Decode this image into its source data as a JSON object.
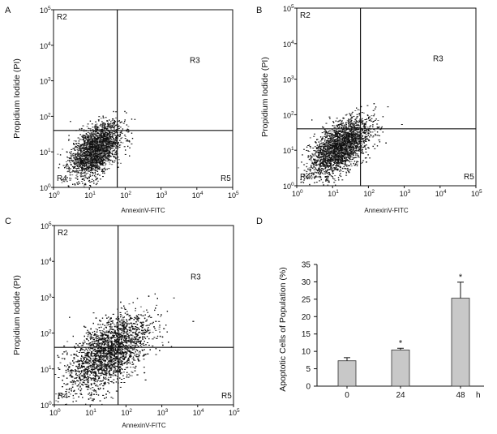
{
  "figure": {
    "panels": [
      "A",
      "B",
      "C",
      "D"
    ]
  },
  "flow_axes": {
    "x_label": "AnnexinV-FITC",
    "y_label": "Propidium Iodide (PI)",
    "base": "10",
    "exponents": [
      "0",
      "1",
      "2",
      "3",
      "4",
      "5"
    ],
    "regions": [
      "R2",
      "R3",
      "R4",
      "R5"
    ]
  },
  "chart_data": [
    {
      "panel": "A",
      "type": "scatter",
      "title": "",
      "xlabel": "AnnexinV-FITC",
      "ylabel": "Propidium Iodide (PI)",
      "xscale": "log",
      "yscale": "log",
      "xlim": [
        1,
        100000
      ],
      "ylim": [
        1,
        100000
      ],
      "gate_x": 60,
      "gate_y": 40,
      "regions": [
        "R2",
        "R3",
        "R4",
        "R5"
      ],
      "population": {
        "center_log": [
          1.15,
          1.05
        ],
        "spread_log": [
          0.35,
          0.45
        ],
        "events": 2200
      }
    },
    {
      "panel": "B",
      "type": "scatter",
      "title": "",
      "xlabel": "AnnexinV-FITC",
      "ylabel": "Propidium Iodide (PI)",
      "xscale": "log",
      "yscale": "log",
      "xlim": [
        1,
        100000
      ],
      "ylim": [
        1,
        100000
      ],
      "gate_x": 60,
      "gate_y": 40,
      "regions": [
        "R2",
        "R3",
        "R4",
        "R5"
      ],
      "population": {
        "center_log": [
          1.2,
          1.1
        ],
        "spread_log": [
          0.4,
          0.45
        ],
        "events": 2400
      }
    },
    {
      "panel": "C",
      "type": "scatter",
      "title": "",
      "xlabel": "AnnexinV-FITC",
      "ylabel": "Propidium Iodide (PI)",
      "xscale": "log",
      "yscale": "log",
      "xlim": [
        1,
        100000
      ],
      "ylim": [
        1,
        100000
      ],
      "gate_x": 60,
      "gate_y": 40,
      "regions": [
        "R2",
        "R3",
        "R4",
        "R5"
      ],
      "population": {
        "center_log": [
          1.5,
          1.45
        ],
        "spread_log": [
          0.55,
          0.6
        ],
        "events": 3200
      }
    },
    {
      "panel": "D",
      "type": "bar",
      "title": "",
      "categories": [
        "0",
        "24",
        "48"
      ],
      "values": [
        7.3,
        10.4,
        25.3
      ],
      "errors": [
        0.9,
        0.5,
        4.6
      ],
      "significance": [
        "",
        "*",
        "*"
      ],
      "xlabel": "h",
      "ylabel": "Apoptotic Cells of Population  (%)",
      "ylim": [
        0,
        35
      ],
      "yticks": [
        "0",
        "5",
        "10",
        "15",
        "20",
        "25",
        "30",
        "35"
      ],
      "bar_color": "#c8c8c8"
    }
  ]
}
